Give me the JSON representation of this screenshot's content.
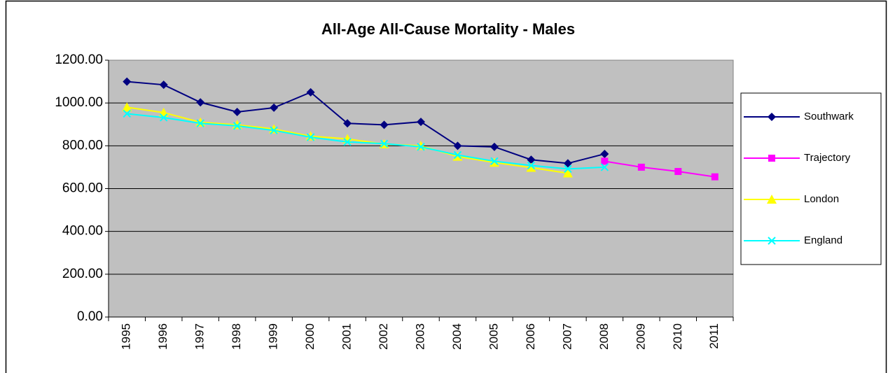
{
  "chart_data": {
    "type": "line",
    "title": "All-Age All-Cause Mortality  - Males",
    "categories": [
      "1995",
      "1996",
      "1997",
      "1998",
      "1999",
      "2000",
      "2001",
      "2002",
      "2003",
      "2004",
      "2005",
      "2006",
      "2007",
      "2008",
      "2009",
      "2010",
      "2011"
    ],
    "series": [
      {
        "name": "Southwark",
        "color": "#000080",
        "marker": "diamond",
        "values": [
          1100,
          1085,
          1003,
          958,
          978,
          1050,
          905,
          898,
          912,
          800,
          795,
          735,
          718,
          762,
          null,
          null,
          null
        ]
      },
      {
        "name": "Trajectory",
        "color": "#ff00ff",
        "marker": "square",
        "values": [
          null,
          null,
          null,
          null,
          null,
          null,
          null,
          null,
          null,
          null,
          null,
          null,
          null,
          728,
          700,
          680,
          655
        ]
      },
      {
        "name": "London",
        "color": "#ffff00",
        "marker": "triangle",
        "values": [
          980,
          955,
          910,
          898,
          878,
          845,
          832,
          808,
          800,
          750,
          722,
          698,
          672,
          null,
          null,
          null,
          null
        ]
      },
      {
        "name": "England",
        "color": "#00ffff",
        "marker": "x",
        "values": [
          950,
          932,
          905,
          893,
          872,
          840,
          818,
          810,
          795,
          757,
          728,
          708,
          692,
          700,
          null,
          null,
          null
        ]
      }
    ],
    "ylim": [
      0,
      1200
    ],
    "yticks": [
      {
        "value": 0,
        "label": "0.00"
      },
      {
        "value": 200,
        "label": "200.00"
      },
      {
        "value": 400,
        "label": "400.00"
      },
      {
        "value": 600,
        "label": "600.00"
      },
      {
        "value": 800,
        "label": "800.00"
      },
      {
        "value": 1000,
        "label": "1000.00"
      },
      {
        "value": 1200,
        "label": "1200.00"
      }
    ],
    "grid": true,
    "legend": "right"
  }
}
